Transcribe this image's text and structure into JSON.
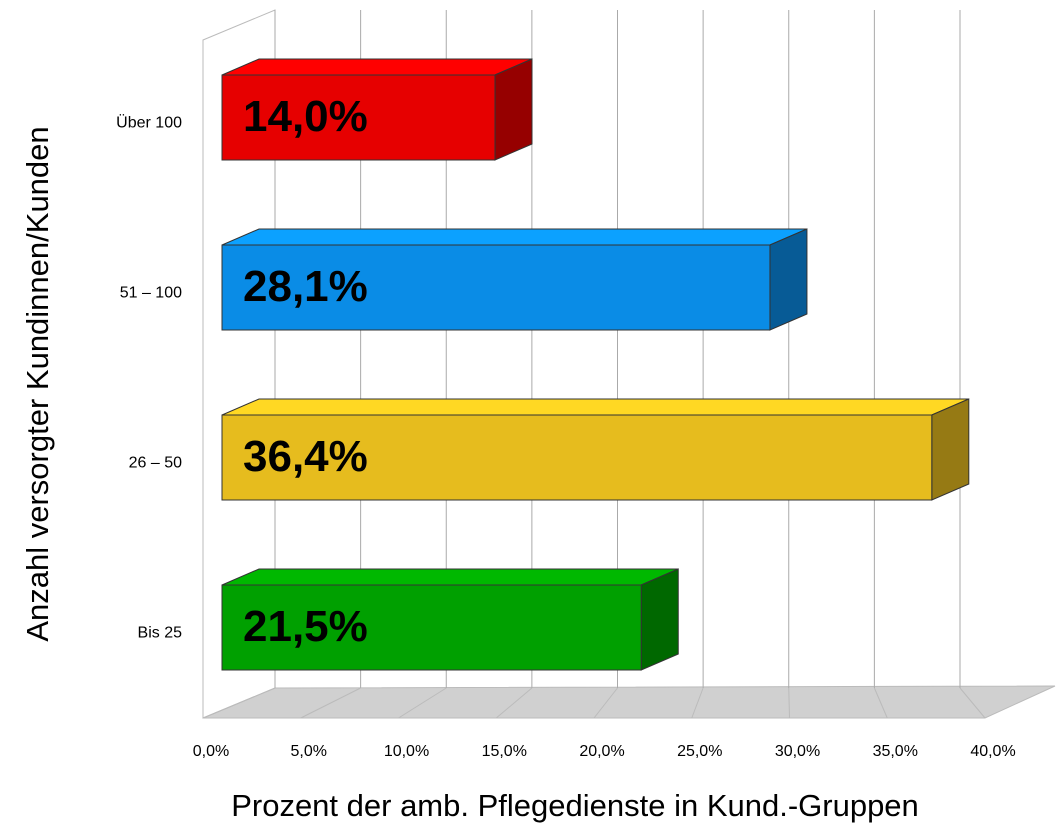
{
  "chart_data": {
    "type": "bar3d_h",
    "xlabel": "Prozent der amb. Pflegedienste in Kund.-Gruppen",
    "ylabel": "Anzahl versorgter Kundinnen/Kunden",
    "categories": [
      "Bis 25",
      "26 – 50",
      "51 – 100",
      "Über 100"
    ],
    "values": [
      21.5,
      36.4,
      28.1,
      14.0
    ],
    "value_labels": [
      "21,5%",
      "36,4%",
      "28,1%",
      "14,0%"
    ],
    "colors": [
      "#00a000",
      "#e6bc1e",
      "#0a8ce6",
      "#e60000"
    ],
    "xlim": [
      0,
      40
    ],
    "xticks": [
      {
        "value": 0,
        "label": "0,0%"
      },
      {
        "value": 5,
        "label": "5,0%"
      },
      {
        "value": 10,
        "label": "10,0%"
      },
      {
        "value": 15,
        "label": "15,0%"
      },
      {
        "value": 20,
        "label": "20,0%"
      },
      {
        "value": 25,
        "label": "25,0%"
      },
      {
        "value": 30,
        "label": "30,0%"
      },
      {
        "value": 35,
        "label": "35,0%"
      },
      {
        "value": 40,
        "label": "40,0%"
      }
    ],
    "grid": true
  }
}
